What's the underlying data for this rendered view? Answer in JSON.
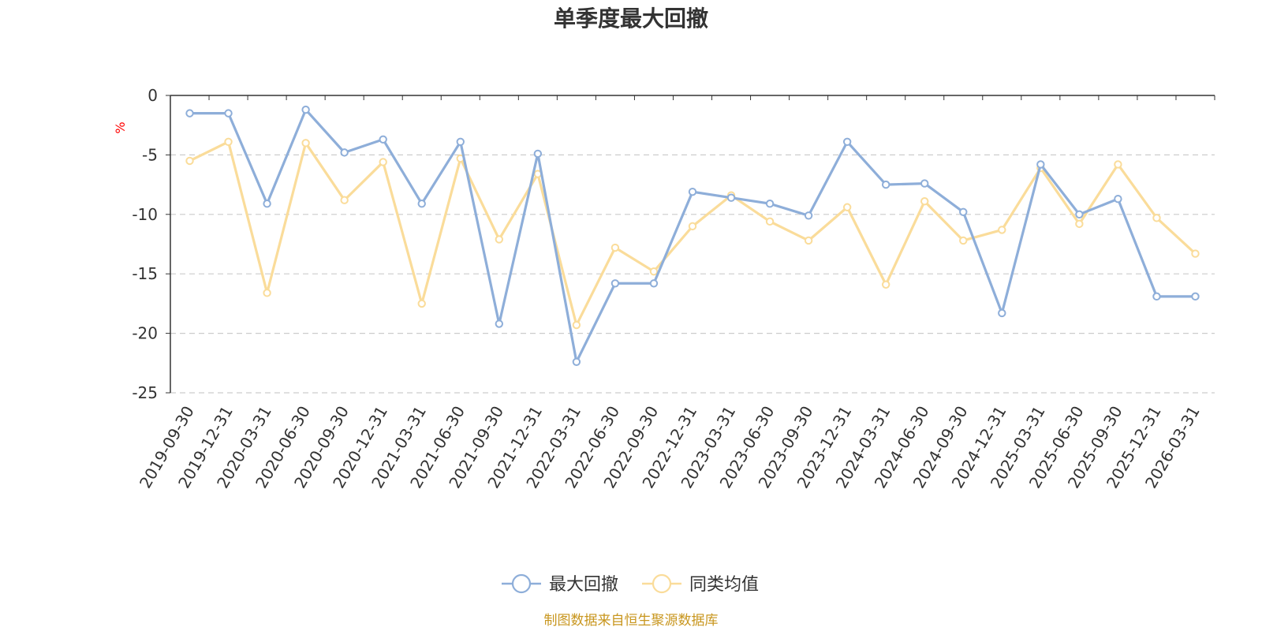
{
  "chart_data": {
    "type": "line",
    "title": "单季度最大回撤",
    "ylabel": "%",
    "ylim": [
      -25,
      0
    ],
    "yticks": [
      0,
      -5,
      -10,
      -15,
      -20,
      -25
    ],
    "grid": true,
    "legend_position": "bottom-center",
    "categories": [
      "2019-09-30",
      "2019-12-31",
      "2020-03-31",
      "2020-06-30",
      "2020-09-30",
      "2020-12-31",
      "2021-03-31",
      "2021-06-30",
      "2021-09-30",
      "2021-12-31",
      "2022-03-31",
      "2022-06-30",
      "2022-09-30",
      "2022-12-31",
      "2023-03-31",
      "2023-06-30",
      "2023-09-30",
      "2023-12-31",
      "2024-03-31",
      "2024-06-30",
      "2024-09-30",
      "2024-12-31",
      "2025-03-31",
      "2025-06-30",
      "2025-09-30",
      "2025-12-31",
      "2026-03-31"
    ],
    "series": [
      {
        "name": "最大回撤",
        "color": "#8eaed9",
        "values": [
          -1.5,
          -1.5,
          -9.1,
          -1.2,
          -4.8,
          -3.7,
          -9.1,
          -3.9,
          -19.2,
          -4.9,
          -22.4,
          -15.8,
          -15.8,
          -8.1,
          -8.6,
          -9.1,
          -10.1,
          -3.9,
          -7.5,
          -7.4,
          -9.8,
          -18.3,
          -5.8,
          -10.0,
          -8.7,
          -16.9,
          -16.9
        ]
      },
      {
        "name": "同类均值",
        "color": "#fadc9a",
        "values": [
          -5.5,
          -3.9,
          -16.6,
          -4.0,
          -8.8,
          -5.6,
          -17.5,
          -5.3,
          -12.1,
          -6.6,
          -19.3,
          -12.8,
          -14.8,
          -11.0,
          -8.4,
          -10.6,
          -12.2,
          -9.4,
          -15.9,
          -8.9,
          -12.2,
          -11.3,
          -6.1,
          -10.8,
          -5.8,
          -10.3,
          -13.3
        ]
      }
    ]
  },
  "source_text": "制图数据来自恒生聚源数据库"
}
